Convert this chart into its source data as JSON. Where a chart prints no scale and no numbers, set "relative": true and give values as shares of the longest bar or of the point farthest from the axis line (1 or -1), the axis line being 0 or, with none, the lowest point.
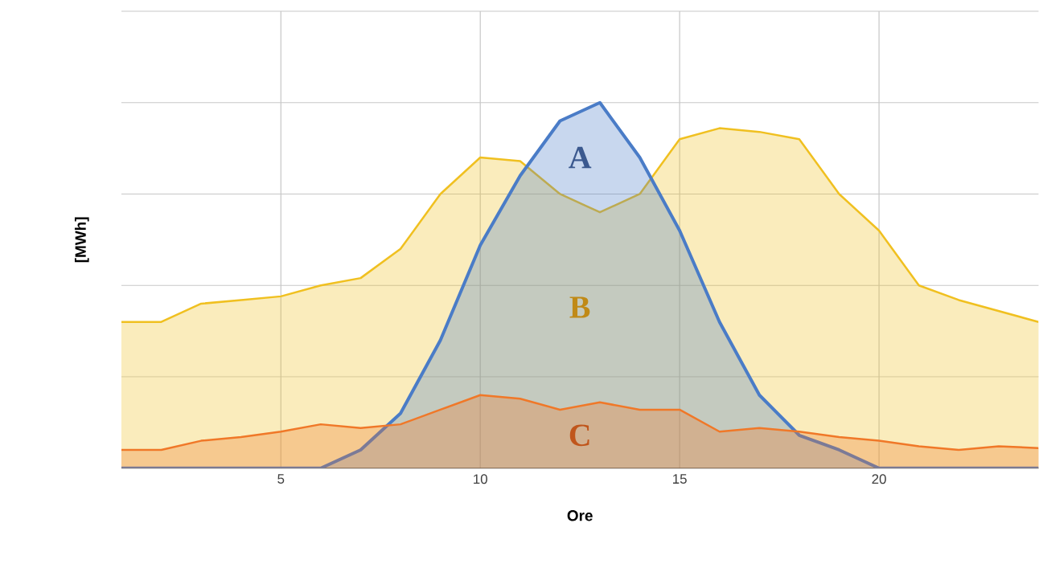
{
  "chart_data": {
    "type": "area",
    "relative": true,
    "xlabel": "Ore",
    "ylabel": "[MWh]",
    "x": [
      1,
      2,
      3,
      4,
      5,
      6,
      7,
      8,
      9,
      10,
      11,
      12,
      13,
      14,
      15,
      16,
      17,
      18,
      19,
      20,
      21,
      22,
      23,
      24
    ],
    "xlim": [
      1,
      24
    ],
    "xticks": [
      5,
      10,
      15,
      20
    ],
    "grid": true,
    "series": [
      {
        "name": "B",
        "color": "#f0c020",
        "values": [
          0.4,
          0.4,
          0.45,
          0.46,
          0.47,
          0.5,
          0.52,
          0.6,
          0.75,
          0.85,
          0.84,
          0.75,
          0.7,
          0.75,
          0.9,
          0.93,
          0.92,
          0.9,
          0.75,
          0.65,
          0.5,
          0.46,
          0.43,
          0.4
        ]
      },
      {
        "name": "A",
        "color": "#4a7cc7",
        "values": [
          0,
          0,
          0,
          0,
          0,
          0,
          0.05,
          0.15,
          0.35,
          0.61,
          0.8,
          0.95,
          1,
          0.85,
          0.65,
          0.4,
          0.2,
          0.09,
          0.05,
          0,
          0,
          0,
          0,
          0
        ]
      },
      {
        "name": "C",
        "color": "#f07828",
        "values": [
          0.05,
          0.05,
          0.075,
          0.085,
          0.1,
          0.12,
          0.11,
          0.12,
          0.16,
          0.2,
          0.19,
          0.16,
          0.18,
          0.16,
          0.16,
          0.1,
          0.11,
          0.1,
          0.085,
          0.075,
          0.06,
          0.05,
          0.06,
          0.055
        ]
      }
    ]
  }
}
